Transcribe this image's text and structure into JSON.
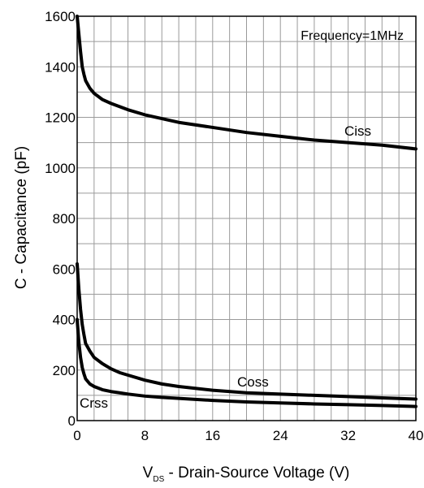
{
  "chart_data": {
    "type": "line",
    "xlabel_main": "V",
    "xlabel_sub": "DS",
    "xlabel_rest": " - Drain-Source Voltage (V)",
    "ylabel": "C - Capacitance (pF)",
    "xlim": [
      0,
      40
    ],
    "ylim": [
      0,
      1600
    ],
    "x_ticks": [
      0,
      8,
      16,
      24,
      32,
      40
    ],
    "y_ticks": [
      0,
      200,
      400,
      600,
      800,
      1000,
      1200,
      1400,
      1600
    ],
    "x_grid_step": 2,
    "y_grid_step": 100,
    "grid": true,
    "annotation": "Frequency=1MHz",
    "series": [
      {
        "name": "Ciss",
        "x": [
          0,
          0.2,
          0.4,
          0.6,
          0.8,
          1,
          1.5,
          2,
          3,
          4,
          6,
          8,
          10,
          12,
          16,
          20,
          24,
          28,
          32,
          36,
          40
        ],
        "y": [
          1600,
          1530,
          1460,
          1400,
          1370,
          1345,
          1315,
          1295,
          1270,
          1255,
          1230,
          1210,
          1195,
          1180,
          1160,
          1140,
          1125,
          1110,
          1100,
          1090,
          1075
        ]
      },
      {
        "name": "Coss",
        "x": [
          0,
          0.2,
          0.4,
          0.6,
          0.8,
          1,
          1.5,
          2,
          3,
          4,
          5,
          6,
          8,
          10,
          12,
          16,
          20,
          24,
          28,
          32,
          36,
          40
        ],
        "y": [
          620,
          520,
          440,
          380,
          340,
          305,
          275,
          250,
          225,
          205,
          190,
          180,
          160,
          145,
          135,
          120,
          110,
          105,
          100,
          95,
          90,
          85
        ]
      },
      {
        "name": "Crss",
        "x": [
          0,
          0.2,
          0.4,
          0.6,
          0.8,
          1,
          1.5,
          2,
          3,
          4,
          5,
          6,
          8,
          10,
          12,
          16,
          20,
          24,
          28,
          32,
          36,
          40
        ],
        "y": [
          400,
          310,
          250,
          210,
          185,
          165,
          145,
          135,
          122,
          115,
          110,
          105,
          97,
          92,
          88,
          80,
          74,
          70,
          66,
          63,
          60,
          56
        ]
      }
    ]
  }
}
